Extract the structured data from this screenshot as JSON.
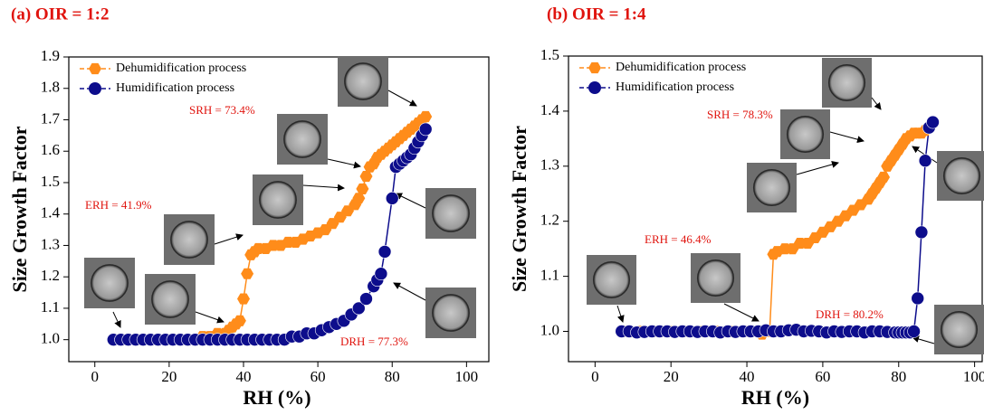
{
  "chart_data": [
    {
      "type": "line",
      "title": "(a) OIR = 1:2",
      "xlabel": "RH (%)",
      "ylabel": "Size Growth Factor",
      "xlim": [
        -7,
        106
      ],
      "xticks": [
        0,
        20,
        40,
        60,
        80,
        100
      ],
      "ylim": [
        0.93,
        1.9
      ],
      "yticks": [
        {
          "value": 1,
          "label": "1.0"
        },
        1.1,
        1.2,
        1.3,
        1.4,
        1.5,
        1.6,
        1.7,
        1.8,
        1.9
      ],
      "legend": "upper left",
      "annotations": [
        "SRH = 73.4%",
        "ERH = 41.9%",
        "DRH = 77.3%"
      ],
      "series": [
        {
          "name": "Dehumidification process",
          "color": "#ff8c1a",
          "marker": "hexagon",
          "x": [
            89,
            88,
            87,
            86,
            85,
            84,
            83,
            82,
            81,
            80,
            79,
            78,
            77,
            76,
            75,
            74,
            73,
            72,
            71,
            70,
            68,
            66,
            64,
            62,
            60,
            58,
            56,
            54,
            52,
            50,
            48,
            46,
            44,
            43,
            42,
            41,
            40,
            39,
            38,
            37,
            36,
            35,
            33,
            31,
            29,
            27,
            25
          ],
          "values": [
            1.71,
            1.7,
            1.69,
            1.68,
            1.67,
            1.66,
            1.65,
            1.64,
            1.63,
            1.62,
            1.61,
            1.6,
            1.59,
            1.58,
            1.56,
            1.55,
            1.52,
            1.48,
            1.45,
            1.43,
            1.41,
            1.39,
            1.37,
            1.35,
            1.34,
            1.33,
            1.32,
            1.31,
            1.31,
            1.3,
            1.3,
            1.29,
            1.29,
            1.28,
            1.27,
            1.21,
            1.13,
            1.06,
            1.05,
            1.04,
            1.03,
            1.02,
            1.02,
            1.01,
            1.01,
            1.0,
            1.0
          ]
        },
        {
          "name": "Humidification process",
          "color": "#0d0d8c",
          "marker": "circle",
          "x": [
            5,
            7,
            9,
            11,
            13,
            15,
            17,
            19,
            21,
            23,
            25,
            27,
            29,
            31,
            33,
            35,
            37,
            39,
            41,
            43,
            45,
            47,
            49,
            51,
            53,
            55,
            57,
            59,
            61,
            63,
            65,
            67,
            69,
            71,
            73,
            75,
            76,
            77,
            78,
            80,
            81,
            82,
            83,
            84,
            85,
            86,
            87,
            88,
            89
          ],
          "values": [
            1.0,
            1.0,
            1.0,
            1.0,
            1.0,
            1.0,
            1.0,
            1.0,
            1.0,
            1.0,
            1.0,
            1.0,
            1.0,
            1.0,
            1.0,
            1.0,
            1.0,
            1.0,
            1.0,
            1.0,
            1.0,
            1.0,
            1.0,
            1.0,
            1.01,
            1.01,
            1.02,
            1.02,
            1.03,
            1.04,
            1.05,
            1.06,
            1.08,
            1.1,
            1.13,
            1.17,
            1.19,
            1.21,
            1.28,
            1.45,
            1.55,
            1.56,
            1.57,
            1.58,
            1.59,
            1.61,
            1.63,
            1.65,
            1.67
          ]
        }
      ]
    },
    {
      "type": "line",
      "title": "(b) OIR = 1:4",
      "xlabel": "RH (%)",
      "ylabel": "Size Growth Factor",
      "xlim": [
        -7,
        102
      ],
      "xticks": [
        0,
        20,
        40,
        60,
        80,
        100
      ],
      "ylim": [
        0.945,
        1.5
      ],
      "yticks": [
        {
          "value": 1,
          "label": "1.0"
        },
        1.1,
        1.2,
        1.3,
        1.4,
        1.5
      ],
      "legend": "upper left",
      "annotations": [
        "SRH = 78.3%",
        "ERH = 46.4%",
        "DRH = 80.2%"
      ],
      "series": [
        {
          "name": "Dehumidification process",
          "color": "#ff8c1a",
          "marker": "hexagon",
          "x": [
            89,
            88,
            87,
            86,
            85,
            84,
            83,
            82,
            81,
            80,
            79,
            78,
            77,
            76,
            75,
            74,
            73,
            72,
            70,
            68,
            66,
            64,
            62,
            60,
            58,
            56,
            54,
            52,
            50,
            48,
            47,
            46,
            44,
            40,
            36,
            32,
            28,
            24,
            20,
            16,
            12,
            8
          ],
          "values": [
            1.38,
            1.37,
            1.365,
            1.36,
            1.36,
            1.36,
            1.355,
            1.35,
            1.34,
            1.33,
            1.32,
            1.31,
            1.3,
            1.28,
            1.27,
            1.26,
            1.25,
            1.24,
            1.23,
            1.22,
            1.21,
            1.2,
            1.19,
            1.18,
            1.17,
            1.16,
            1.16,
            1.15,
            1.15,
            1.145,
            1.14,
            1.0,
            0.995,
            1.0,
            1.0,
            1.0,
            1.0,
            1.0,
            1.0,
            1.0,
            1.0,
            1.0
          ]
        },
        {
          "name": "Humidification process",
          "color": "#0d0d8c",
          "marker": "circle",
          "x": [
            7,
            9,
            11,
            13,
            15,
            17,
            19,
            21,
            23,
            25,
            27,
            29,
            31,
            33,
            35,
            37,
            39,
            41,
            43,
            45,
            47,
            49,
            51,
            53,
            55,
            57,
            59,
            61,
            63,
            65,
            67,
            69,
            71,
            73,
            75,
            77,
            79,
            80,
            81,
            82,
            83,
            84,
            85,
            86,
            87,
            88,
            89
          ],
          "values": [
            1.0,
            1.0,
            0.998,
            0.999,
            1.0,
            1.0,
            1.0,
            0.999,
            1.0,
            1.0,
            0.999,
            1.0,
            1.0,
            0.998,
            1.0,
            0.999,
            1.0,
            1.0,
            1.0,
            1.002,
            1.0,
            1.0,
            1.002,
            1.003,
            1.0,
            1.001,
            1.0,
            0.998,
            1.0,
            0.999,
            1.0,
            1.0,
            0.998,
            1.0,
            1.0,
            0.999,
            0.998,
            0.998,
            0.998,
            0.998,
            0.998,
            1.0,
            1.06,
            1.18,
            1.31,
            1.37,
            1.38
          ]
        }
      ]
    }
  ]
}
